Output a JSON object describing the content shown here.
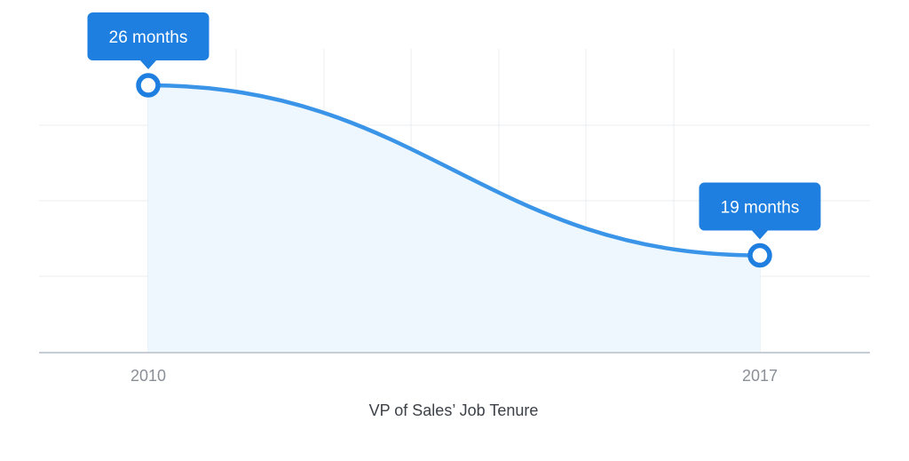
{
  "chart_data": {
    "type": "line",
    "title": "",
    "xlabel": "VP of Sales’ Job Tenure",
    "ylabel": "",
    "x": [
      "2010",
      "2017"
    ],
    "series": [
      {
        "values": [
          26,
          19
        ]
      }
    ],
    "annotations": [
      "26 months",
      "19 months"
    ],
    "ylim": [
      15,
      27.5
    ],
    "grid": true,
    "colors": {
      "line": "#3a94e8",
      "point_stroke": "#1e7fe0",
      "callout": "#1e7fe0",
      "area": "#eef6fe",
      "grid": "#e8ecf0",
      "axis": "#c7cdd4"
    }
  }
}
